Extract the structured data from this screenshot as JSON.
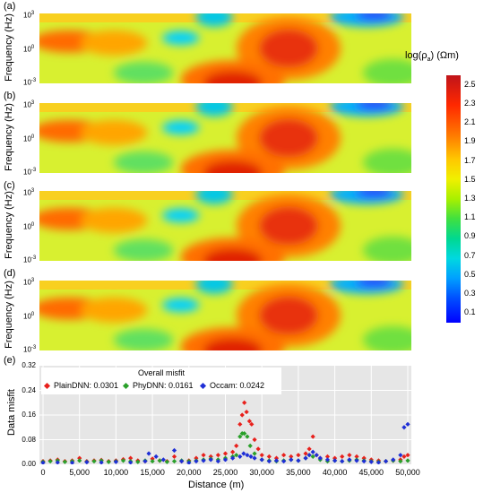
{
  "panels": [
    {
      "label": "(a)"
    },
    {
      "label": "(b)"
    },
    {
      "label": "(c)"
    },
    {
      "label": "(d)"
    }
  ],
  "panel_ylabel": "Frequency (Hz)",
  "freq_ticks": [
    {
      "base": "10",
      "exp": "3"
    },
    {
      "base": "10",
      "exp": "0"
    },
    {
      "base": "10",
      "exp": "-3"
    }
  ],
  "colorbar": {
    "title": "log(ρ",
    "title_sub": "a",
    "title_unit": ") (Ωm)",
    "ticks": [
      "2.5",
      "2.3",
      "2.1",
      "1.9",
      "1.7",
      "1.5",
      "1.3",
      "1.1",
      "0.9",
      "0.7",
      "0.5",
      "0.3",
      "0.1"
    ],
    "range": [
      0.0,
      2.6
    ]
  },
  "misfit": {
    "label": "(e)",
    "ylabel": "Data misfit",
    "xlabel": "Distance (m)",
    "legend_title": "Overall misfit",
    "legend": [
      {
        "name": "PlainDNN: 0.0301",
        "color": "#e8201c"
      },
      {
        "name": "PhyDNN: 0.0161",
        "color": "#2aa02a"
      },
      {
        "name": "Occam: 0.0242",
        "color": "#1f2fd6"
      }
    ],
    "xticks": [
      "0",
      "5,000",
      "10,000",
      "15,000",
      "20,000",
      "25,000",
      "30,000",
      "35,000",
      "40,000",
      "45,000",
      "50,000"
    ],
    "yticks": [
      "0.32",
      "0.24",
      "0.16",
      "0.08",
      "0.00"
    ]
  },
  "chart_data": {
    "type": "scatter",
    "xlabel": "Distance (m)",
    "ylabel": "Data misfit",
    "xlim": [
      0,
      50000
    ],
    "ylim": [
      0,
      0.32
    ],
    "grid": true,
    "legend_placement": "top-left",
    "series": [
      {
        "name": "PlainDNN: 0.0301",
        "points": [
          [
            0,
            0.01
          ],
          [
            1000,
            0.012
          ],
          [
            2000,
            0.015
          ],
          [
            3000,
            0.01
          ],
          [
            4000,
            0.012
          ],
          [
            5000,
            0.02
          ],
          [
            6000,
            0.01
          ],
          [
            7000,
            0.012
          ],
          [
            8000,
            0.014
          ],
          [
            9000,
            0.01
          ],
          [
            10000,
            0.012
          ],
          [
            11000,
            0.016
          ],
          [
            12000,
            0.02
          ],
          [
            13000,
            0.012
          ],
          [
            14000,
            0.01
          ],
          [
            15000,
            0.018
          ],
          [
            16000,
            0.012
          ],
          [
            17000,
            0.01
          ],
          [
            18000,
            0.025
          ],
          [
            19000,
            0.01
          ],
          [
            20000,
            0.012
          ],
          [
            21000,
            0.02
          ],
          [
            22000,
            0.03
          ],
          [
            23000,
            0.025
          ],
          [
            24000,
            0.03
          ],
          [
            25000,
            0.035
          ],
          [
            26000,
            0.04
          ],
          [
            26500,
            0.06
          ],
          [
            27000,
            0.13
          ],
          [
            27300,
            0.16
          ],
          [
            27600,
            0.2
          ],
          [
            27900,
            0.17
          ],
          [
            28300,
            0.14
          ],
          [
            28600,
            0.13
          ],
          [
            29000,
            0.08
          ],
          [
            29500,
            0.05
          ],
          [
            30000,
            0.03
          ],
          [
            31000,
            0.025
          ],
          [
            32000,
            0.02
          ],
          [
            33000,
            0.03
          ],
          [
            34000,
            0.025
          ],
          [
            35000,
            0.03
          ],
          [
            36000,
            0.035
          ],
          [
            36500,
            0.05
          ],
          [
            37000,
            0.09
          ],
          [
            37500,
            0.03
          ],
          [
            38000,
            0.02
          ],
          [
            39000,
            0.025
          ],
          [
            40000,
            0.02
          ],
          [
            41000,
            0.025
          ],
          [
            42000,
            0.03
          ],
          [
            43000,
            0.025
          ],
          [
            44000,
            0.02
          ],
          [
            45000,
            0.015
          ],
          [
            46000,
            0.012
          ],
          [
            47000,
            0.01
          ],
          [
            48000,
            0.012
          ],
          [
            49000,
            0.015
          ],
          [
            49500,
            0.025
          ],
          [
            50000,
            0.03
          ]
        ]
      },
      {
        "name": "PhyDNN: 0.0161",
        "points": [
          [
            0,
            0.008
          ],
          [
            1000,
            0.01
          ],
          [
            2000,
            0.012
          ],
          [
            3000,
            0.008
          ],
          [
            4000,
            0.01
          ],
          [
            5000,
            0.012
          ],
          [
            6000,
            0.008
          ],
          [
            7000,
            0.01
          ],
          [
            8000,
            0.012
          ],
          [
            9000,
            0.008
          ],
          [
            10000,
            0.01
          ],
          [
            11000,
            0.012
          ],
          [
            12000,
            0.01
          ],
          [
            13000,
            0.008
          ],
          [
            14000,
            0.012
          ],
          [
            15000,
            0.01
          ],
          [
            16000,
            0.012
          ],
          [
            17000,
            0.008
          ],
          [
            18000,
            0.01
          ],
          [
            19000,
            0.012
          ],
          [
            20000,
            0.01
          ],
          [
            21000,
            0.012
          ],
          [
            22000,
            0.015
          ],
          [
            23000,
            0.018
          ],
          [
            24000,
            0.015
          ],
          [
            25000,
            0.02
          ],
          [
            26000,
            0.025
          ],
          [
            26500,
            0.03
          ],
          [
            27000,
            0.09
          ],
          [
            27300,
            0.1
          ],
          [
            27600,
            0.1
          ],
          [
            28000,
            0.09
          ],
          [
            28400,
            0.06
          ],
          [
            29000,
            0.035
          ],
          [
            30000,
            0.015
          ],
          [
            31000,
            0.012
          ],
          [
            32000,
            0.01
          ],
          [
            33000,
            0.012
          ],
          [
            34000,
            0.015
          ],
          [
            35000,
            0.012
          ],
          [
            36000,
            0.02
          ],
          [
            36500,
            0.03
          ],
          [
            37000,
            0.025
          ],
          [
            38000,
            0.015
          ],
          [
            39000,
            0.01
          ],
          [
            40000,
            0.012
          ],
          [
            41000,
            0.01
          ],
          [
            42000,
            0.012
          ],
          [
            43000,
            0.015
          ],
          [
            44000,
            0.012
          ],
          [
            45000,
            0.01
          ],
          [
            46000,
            0.008
          ],
          [
            47000,
            0.01
          ],
          [
            48000,
            0.012
          ],
          [
            49000,
            0.01
          ],
          [
            50000,
            0.012
          ]
        ]
      },
      {
        "name": "Occam: 0.0242",
        "points": [
          [
            0,
            0.005
          ],
          [
            2000,
            0.006
          ],
          [
            4000,
            0.005
          ],
          [
            6000,
            0.007
          ],
          [
            8000,
            0.006
          ],
          [
            10000,
            0.008
          ],
          [
            12000,
            0.006
          ],
          [
            14000,
            0.01
          ],
          [
            14500,
            0.035
          ],
          [
            15500,
            0.025
          ],
          [
            16500,
            0.015
          ],
          [
            18000,
            0.045
          ],
          [
            19000,
            0.01
          ],
          [
            20000,
            0.005
          ],
          [
            21000,
            0.01
          ],
          [
            22000,
            0.012
          ],
          [
            23000,
            0.015
          ],
          [
            24000,
            0.01
          ],
          [
            25000,
            0.015
          ],
          [
            26000,
            0.02
          ],
          [
            27000,
            0.025
          ],
          [
            27500,
            0.035
          ],
          [
            28000,
            0.03
          ],
          [
            28500,
            0.025
          ],
          [
            29000,
            0.02
          ],
          [
            30000,
            0.015
          ],
          [
            31000,
            0.01
          ],
          [
            32000,
            0.012
          ],
          [
            33000,
            0.01
          ],
          [
            34000,
            0.015
          ],
          [
            35000,
            0.012
          ],
          [
            36000,
            0.02
          ],
          [
            36500,
            0.03
          ],
          [
            37000,
            0.04
          ],
          [
            37500,
            0.03
          ],
          [
            38000,
            0.02
          ],
          [
            39000,
            0.015
          ],
          [
            40000,
            0.012
          ],
          [
            41000,
            0.01
          ],
          [
            42000,
            0.015
          ],
          [
            43000,
            0.012
          ],
          [
            44000,
            0.01
          ],
          [
            45000,
            0.008
          ],
          [
            46000,
            0.006
          ],
          [
            47000,
            0.01
          ],
          [
            48000,
            0.015
          ],
          [
            49000,
            0.03
          ],
          [
            49500,
            0.12
          ],
          [
            50000,
            0.13
          ]
        ]
      }
    ]
  }
}
